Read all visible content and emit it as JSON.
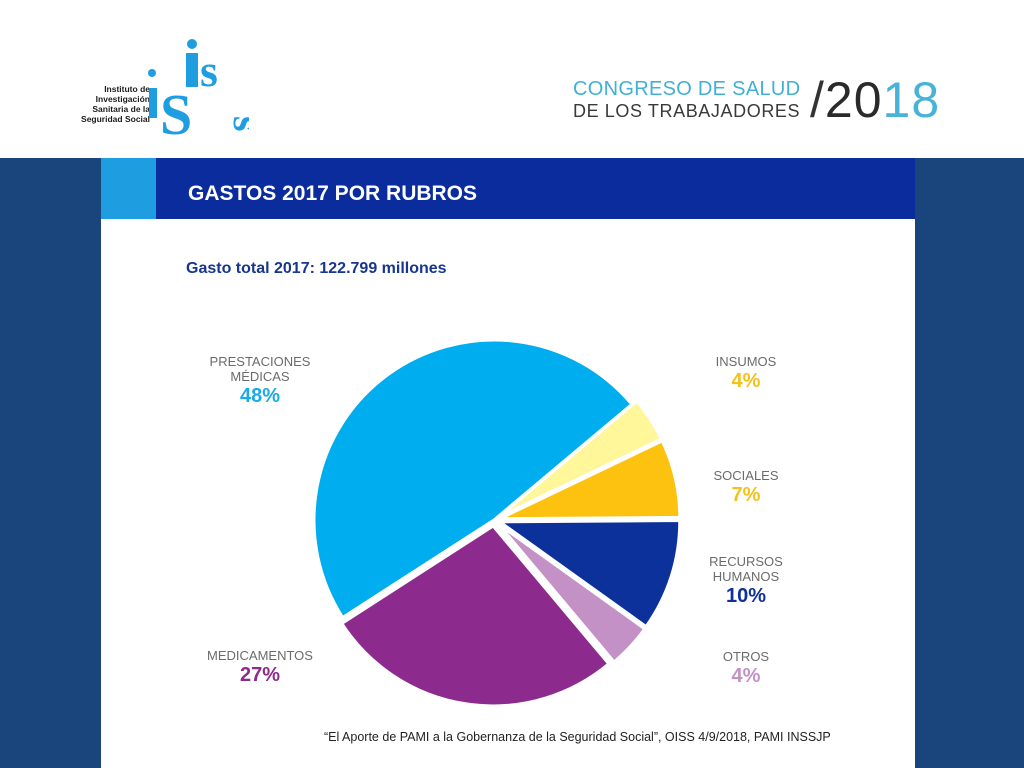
{
  "logo": {
    "text_lines": [
      "Instituto de",
      "Investigación",
      "Sanitaria de la",
      "Seguridad Social"
    ],
    "mark_text": "iss"
  },
  "congress": {
    "line1": "CONGRESO DE SALUD",
    "line2": "DE LOS TRABAJADORES",
    "slash": "/",
    "year_a": "20",
    "year_b": "18"
  },
  "slide": {
    "title": "GASTOS 2017 POR RUBROS",
    "subtitle": "Gasto total 2017: 122.799 millones"
  },
  "colors": {
    "background_band": "#19457c",
    "title_bar": "#0a2c9c",
    "title_accent": "#1e9ee0"
  },
  "chart_data": {
    "type": "pie",
    "title": "GASTOS 2017 POR RUBROS",
    "subtitle": "Gasto total 2017: 122.799 millones",
    "slices": [
      {
        "name_lines": [
          "PRESTACIONES",
          "MÉDICAS"
        ],
        "value": 48,
        "label": "48%",
        "color": "#00aeef"
      },
      {
        "name_lines": [
          "INSUMOS"
        ],
        "value": 4,
        "label": "4%",
        "color": "#fff799"
      },
      {
        "name_lines": [
          "SOCIALES"
        ],
        "value": 7,
        "label": "7%",
        "color": "#fdc20f"
      },
      {
        "name_lines": [
          "RECURSOS",
          "HUMANOS"
        ],
        "value": 10,
        "label": "10%",
        "color": "#0c319b"
      },
      {
        "name_lines": [
          "OTROS"
        ],
        "value": 4,
        "label": "4%",
        "color": "#c391c6"
      },
      {
        "name_lines": [
          "MEDICAMENTOS"
        ],
        "value": 27,
        "label": "27%",
        "color": "#8d2a8d"
      }
    ],
    "label_colors": {
      "PRESTACIONES MÉDICAS": "#1aaae6",
      "INSUMOS": "#f2c21b",
      "SOCIALES": "#f2c21b",
      "RECURSOS HUMANOS": "#0c319b",
      "OTROS": "#c391c6",
      "MEDICAMENTOS": "#8d2a8d"
    }
  },
  "source": "“El Aporte de PAMI a la Gobernanza de la Seguridad Social”, OISS 4/9/2018, PAMI INSSJP"
}
